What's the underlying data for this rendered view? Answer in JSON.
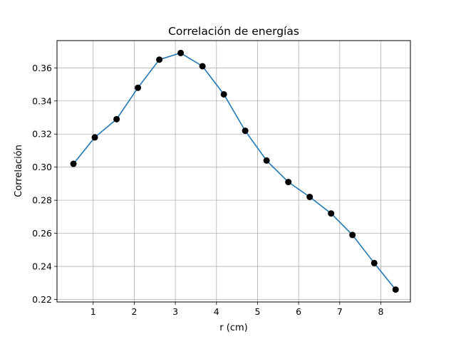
{
  "chart_data": {
    "type": "line",
    "title": "Correlación de energías",
    "xlabel": "r (cm)",
    "ylabel": "Correlación",
    "xlim": [
      0.12,
      8.72
    ],
    "ylim": [
      0.2185,
      0.3765
    ],
    "xticks": [
      1,
      2,
      3,
      4,
      5,
      6,
      7,
      8
    ],
    "yticks": [
      0.22,
      0.24,
      0.26,
      0.28,
      0.3,
      0.32,
      0.34,
      0.36
    ],
    "ytick_labels": [
      "0.22",
      "0.24",
      "0.26",
      "0.28",
      "0.30",
      "0.32",
      "0.34",
      "0.36"
    ],
    "grid": true,
    "line_color": "#1f77b4",
    "marker_color": "#000000",
    "series": [
      {
        "x": [
          0.52,
          1.04,
          1.57,
          2.09,
          2.61,
          3.13,
          3.66,
          4.18,
          4.7,
          5.22,
          5.75,
          6.27,
          6.79,
          7.31,
          7.84,
          8.36
        ],
        "y": [
          0.302,
          0.318,
          0.329,
          0.348,
          0.365,
          0.369,
          0.361,
          0.344,
          0.322,
          0.304,
          0.291,
          0.282,
          0.272,
          0.259,
          0.242,
          0.226
        ]
      }
    ]
  }
}
